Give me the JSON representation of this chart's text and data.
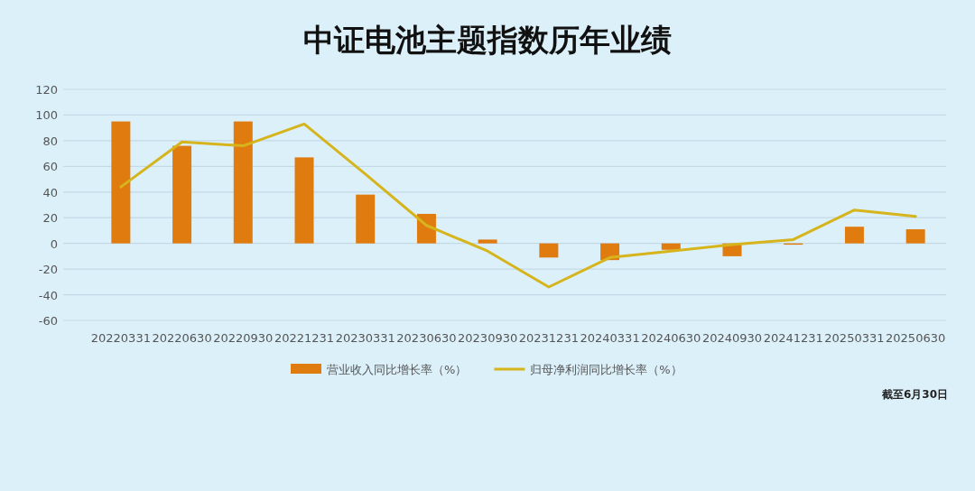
{
  "chart_data": {
    "type": "bar",
    "title": "中证电池主题指数历年业绩",
    "categories": [
      "20220331",
      "20220630",
      "20220930",
      "20221231",
      "20230331",
      "20230630",
      "20230930",
      "20231231",
      "20240331",
      "20240630",
      "20240930",
      "20241231",
      "20250331",
      "20250630"
    ],
    "series": [
      {
        "name": "营业收入同比增长率（%）",
        "color": "#e07b10",
        "values": [
          95,
          76,
          95,
          67,
          38,
          23,
          3,
          -11,
          -13,
          -5,
          -10,
          -1,
          13,
          11
        ]
      },
      {
        "name": "归母净利润同比增长率（%）",
        "type": "line",
        "color": "#d6b41c",
        "values": [
          44,
          79,
          76,
          93,
          54,
          14,
          -6,
          -34,
          -11,
          -6,
          -1,
          3,
          26,
          21
        ]
      }
    ],
    "ylim": [
      -60,
      120
    ],
    "yticks": [
      -60,
      -40,
      -20,
      0,
      20,
      40,
      60,
      80,
      100,
      120
    ],
    "grid": "y",
    "legend": "bottom",
    "annotations": [
      "截至6月30日"
    ]
  }
}
